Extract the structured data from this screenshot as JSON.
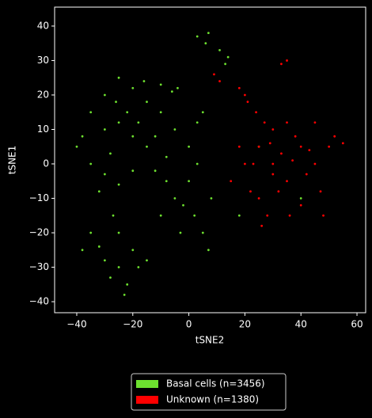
{
  "chart_data": {
    "type": "scatter",
    "xlabel": "tSNE2",
    "ylabel": "tSNE1",
    "xlim": [
      -47.9,
      63.1
    ],
    "ylim": [
      -43.2,
      45.5
    ],
    "xticks": [
      {
        "value": -40,
        "label": "−40"
      },
      {
        "value": -20,
        "label": "−20"
      },
      0,
      20,
      40,
      60
    ],
    "yticks": [
      {
        "value": -40,
        "label": "−40"
      },
      {
        "value": -30,
        "label": "−30"
      },
      {
        "value": -20,
        "label": "−20"
      },
      {
        "value": -10,
        "label": "−10"
      },
      0,
      10,
      20,
      30,
      40
    ],
    "series": [
      {
        "name": "Basal cells (n=3456)",
        "color": "#6de02f",
        "x": [
          -40,
          -35,
          -30,
          -25,
          -20,
          -15,
          -10,
          -5,
          -30,
          -25,
          -20,
          -15,
          -35,
          -30,
          -25,
          -20,
          -28,
          -22,
          -18,
          -12,
          -8,
          -38,
          -32,
          -26,
          -16,
          -12,
          -38,
          -35,
          -30,
          -28,
          -25,
          -22,
          -20,
          -25,
          -18,
          -32,
          -27,
          -23,
          -15,
          -10,
          -5,
          0,
          2,
          5,
          7,
          -3,
          0,
          3,
          5,
          -2,
          8,
          -8,
          3,
          3,
          6,
          7,
          11,
          14,
          13,
          -10,
          -6,
          -4,
          25,
          40,
          18
        ],
        "values": [
          5,
          15,
          20,
          25,
          22,
          18,
          15,
          10,
          10,
          12,
          8,
          5,
          0,
          -3,
          -6,
          -2,
          3,
          15,
          12,
          8,
          2,
          8,
          -8,
          18,
          24,
          -2,
          -25,
          -20,
          -28,
          -33,
          -30,
          -35,
          -25,
          -20,
          -30,
          -24,
          -15,
          -38,
          -28,
          -15,
          -10,
          -5,
          -15,
          -20,
          -25,
          -20,
          5,
          12,
          15,
          -12,
          -10,
          -5,
          0,
          37,
          35,
          38,
          33,
          31,
          29,
          23,
          21,
          22,
          5,
          -10,
          -15
        ]
      },
      {
        "name": "Unknown (n=1380)",
        "color": "#ff0000",
        "x": [
          20,
          25,
          30,
          35,
          40,
          45,
          30,
          25,
          35,
          40,
          50,
          28,
          22,
          18,
          33,
          38,
          42,
          27,
          47,
          52,
          32,
          24,
          36,
          45,
          30,
          20,
          21,
          18,
          9,
          11,
          35,
          33,
          15,
          48,
          55,
          26,
          23,
          37,
          43,
          29
        ],
        "values": [
          0,
          5,
          0,
          -5,
          5,
          0,
          10,
          -10,
          12,
          -12,
          5,
          -15,
          -8,
          5,
          3,
          8,
          -3,
          12,
          -8,
          8,
          -8,
          15,
          -15,
          12,
          -3,
          20,
          18,
          22,
          26,
          24,
          30,
          29,
          -5,
          -15,
          6,
          -18,
          0,
          1,
          4,
          6
        ]
      }
    ]
  }
}
